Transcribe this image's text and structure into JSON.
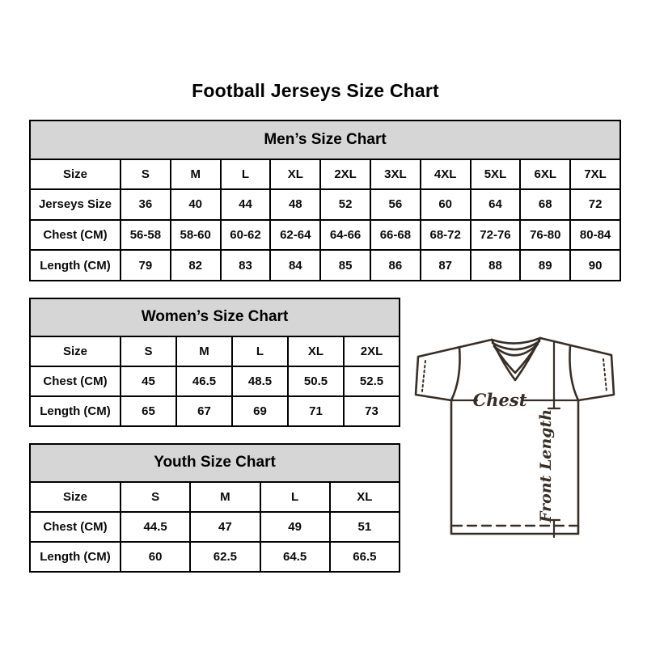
{
  "title": "Football Jerseys Size Chart",
  "tables": {
    "men": {
      "title": "Men’s Size Chart",
      "rows": [
        {
          "label": "Size",
          "values": [
            "S",
            "M",
            "L",
            "XL",
            "2XL",
            "3XL",
            "4XL",
            "5XL",
            "6XL",
            "7XL"
          ]
        },
        {
          "label": "Jerseys Size",
          "values": [
            "36",
            "40",
            "44",
            "48",
            "52",
            "56",
            "60",
            "64",
            "68",
            "72"
          ]
        },
        {
          "label": "Chest (CM)",
          "values": [
            "56-58",
            "58-60",
            "60-62",
            "62-64",
            "64-66",
            "66-68",
            "68-72",
            "72-76",
            "76-80",
            "80-84"
          ]
        },
        {
          "label": "Length (CM)",
          "values": [
            "79",
            "82",
            "83",
            "84",
            "85",
            "86",
            "87",
            "88",
            "89",
            "90"
          ]
        }
      ]
    },
    "women": {
      "title": "Women’s Size Chart",
      "rows": [
        {
          "label": "Size",
          "values": [
            "S",
            "M",
            "L",
            "XL",
            "2XL"
          ]
        },
        {
          "label": "Chest (CM)",
          "values": [
            "45",
            "46.5",
            "48.5",
            "50.5",
            "52.5"
          ]
        },
        {
          "label": "Length (CM)",
          "values": [
            "65",
            "67",
            "69",
            "71",
            "73"
          ]
        }
      ]
    },
    "youth": {
      "title": "Youth Size Chart",
      "rows": [
        {
          "label": "Size",
          "values": [
            "S",
            "M",
            "L",
            "XL"
          ]
        },
        {
          "label": "Chest (CM)",
          "values": [
            "44.5",
            "47",
            "49",
            "51"
          ]
        },
        {
          "label": "Length (CM)",
          "values": [
            "60",
            "62.5",
            "64.5",
            "66.5"
          ]
        }
      ]
    }
  },
  "diagram": {
    "chest_label": "Chest",
    "front_length_label": "Front Length"
  },
  "colors": {
    "table_header_bg": "#d6d6d6",
    "table_border": "#000000",
    "jersey_outline": "#372e27"
  }
}
